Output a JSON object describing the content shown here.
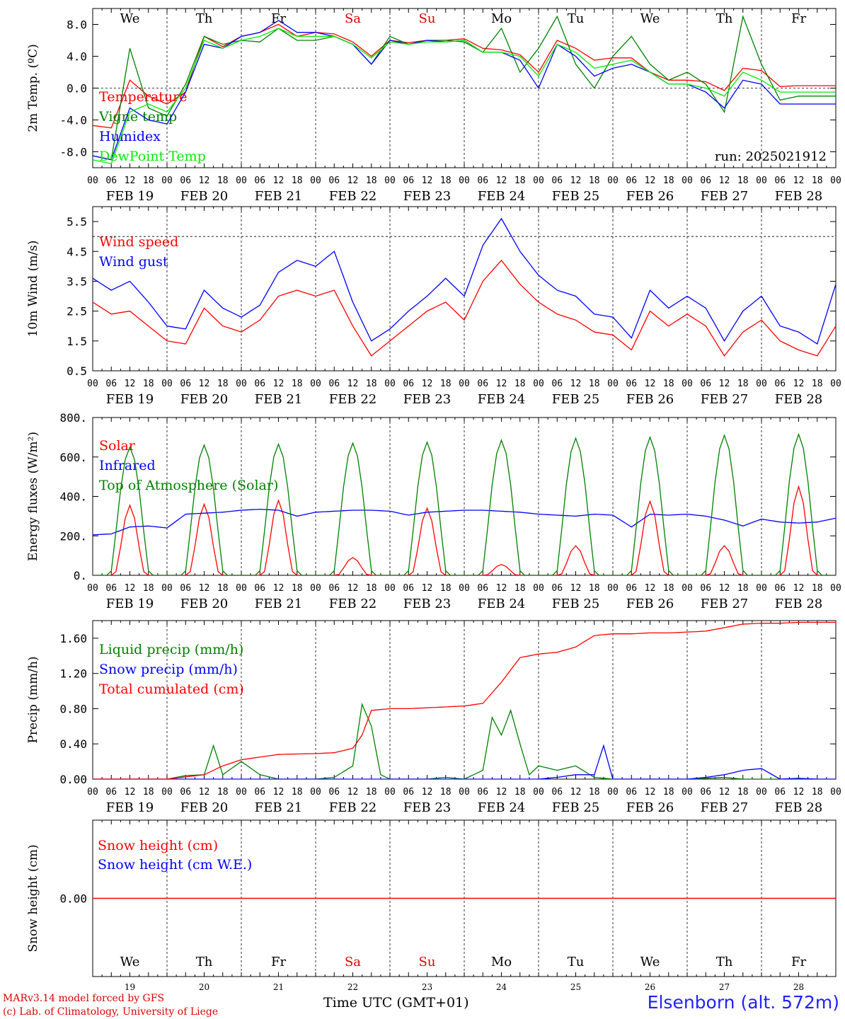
{
  "credits": {
    "model_line": "MARv3.14 model forced by GFS",
    "lab_line": "(c) Lab. of Climatology, University of Liege"
  },
  "xaxis_title": "Time UTC (GMT+01)",
  "station": "Elsenborn (alt. 572m)",
  "run_label": "run: 2025021912",
  "date_labels": [
    "FEB 19",
    "FEB 20",
    "FEB 21",
    "FEB 22",
    "FEB 23",
    "FEB 24",
    "FEB 25",
    "FEB 26",
    "FEB 27",
    "FEB 28"
  ],
  "hour_ticks": [
    "00",
    "06",
    "12",
    "18"
  ],
  "weekdays": [
    {
      "label": "We",
      "color": "#000000"
    },
    {
      "label": "Th",
      "color": "#000000"
    },
    {
      "label": "Fr",
      "color": "#000000"
    },
    {
      "label": "Sa",
      "color": "#e00000"
    },
    {
      "label": "Su",
      "color": "#e00000"
    },
    {
      "label": "Mo",
      "color": "#000000"
    },
    {
      "label": "Tu",
      "color": "#000000"
    },
    {
      "label": "We",
      "color": "#000000"
    },
    {
      "label": "Th",
      "color": "#000000"
    },
    {
      "label": "Fr",
      "color": "#000000"
    }
  ],
  "day_numbers": [
    "19",
    "20",
    "21",
    "22",
    "23",
    "24",
    "25",
    "26",
    "27",
    "28"
  ],
  "colors": {
    "red": "#ff0000",
    "green": "#008000",
    "blue": "#0000ff",
    "lime": "#00ee00"
  },
  "chart_data": [
    {
      "type": "line",
      "id": "temp",
      "ylabel": "2m Temp. (ºC)",
      "ylim": [
        -10.0,
        10.0
      ],
      "yticks": [
        -8.0,
        -4.0,
        0.0,
        4.0,
        8.0
      ],
      "ytick_labels": [
        "-8.0",
        "-4.0",
        "0.0",
        "4.0",
        "8.0"
      ],
      "ref_lines": [
        0.0
      ],
      "x_hours": [
        0,
        6,
        12,
        18,
        24,
        30,
        36,
        42,
        48,
        54,
        60,
        66,
        72,
        78,
        84,
        90,
        96,
        102,
        108,
        114,
        120,
        126,
        132,
        138,
        144,
        150,
        156,
        162,
        168,
        174,
        180,
        186,
        192,
        198,
        204,
        210,
        216,
        222,
        228,
        234,
        240
      ],
      "series": [
        {
          "name": "Temperature",
          "color": "red",
          "values": [
            -4.7,
            -5.0,
            1.0,
            -1.0,
            -2.0,
            -0.5,
            6.5,
            5.2,
            6.5,
            7.0,
            8.0,
            6.5,
            7.0,
            6.8,
            5.8,
            4.0,
            6.0,
            5.7,
            6.0,
            6.0,
            6.2,
            5.0,
            4.8,
            4.2,
            2.0,
            6.0,
            5.0,
            3.5,
            3.8,
            3.8,
            2.0,
            1.0,
            1.0,
            0.8,
            -0.3,
            2.5,
            2.2,
            0.2,
            0.3,
            0.3,
            0.3
          ]
        },
        {
          "name": "Vigne temp",
          "color": "green",
          "values": [
            -8.5,
            -9.0,
            5.0,
            -2.5,
            -3.5,
            0.5,
            6.5,
            5.5,
            6.0,
            5.8,
            7.5,
            6.0,
            6.0,
            6.5,
            5.5,
            3.0,
            6.5,
            5.5,
            6.0,
            6.0,
            5.8,
            4.5,
            7.5,
            2.0,
            5.0,
            9.0,
            3.0,
            0.0,
            4.0,
            6.5,
            3.0,
            1.0,
            2.0,
            0.5,
            -3.0,
            9.0,
            3.0,
            -1.5,
            -1.0,
            -1.0,
            -1.0
          ]
        },
        {
          "name": "Humidex",
          "color": "blue",
          "values": [
            -8.5,
            -9.0,
            -2.5,
            -4.0,
            -4.5,
            -0.5,
            5.5,
            5.0,
            6.5,
            7.0,
            8.5,
            7.0,
            7.0,
            6.5,
            5.5,
            3.0,
            6.0,
            5.5,
            6.0,
            5.8,
            6.0,
            4.5,
            4.5,
            3.5,
            0.0,
            5.5,
            4.0,
            1.5,
            2.5,
            3.0,
            2.0,
            0.5,
            0.5,
            -0.5,
            -2.5,
            1.0,
            0.5,
            -2.0,
            -2.0,
            -2.0,
            -2.0
          ]
        },
        {
          "name": "DewPoint Temp",
          "color": "lime",
          "values": [
            -9.0,
            -9.5,
            -3.0,
            -2.0,
            -3.0,
            0.0,
            6.0,
            5.0,
            6.0,
            6.5,
            7.5,
            6.5,
            6.5,
            6.5,
            5.5,
            3.8,
            5.8,
            5.5,
            5.8,
            5.8,
            6.0,
            4.5,
            4.5,
            4.0,
            1.5,
            5.5,
            4.5,
            2.5,
            3.0,
            3.5,
            2.0,
            0.5,
            0.5,
            0.0,
            -1.0,
            2.0,
            1.0,
            -0.5,
            -0.5,
            -0.5,
            -0.5
          ]
        }
      ]
    },
    {
      "type": "line",
      "id": "wind",
      "ylabel": "10m Wind (m/s)",
      "ylim": [
        0.5,
        6.0
      ],
      "yticks": [
        0.5,
        1.5,
        2.5,
        3.5,
        4.5,
        5.5
      ],
      "ytick_labels": [
        "0.5",
        "1.5",
        "2.5",
        "3.5",
        "4.5",
        "5.5"
      ],
      "ref_lines": [
        5.0
      ],
      "x_hours": [
        0,
        6,
        12,
        18,
        24,
        30,
        36,
        42,
        48,
        54,
        60,
        66,
        72,
        78,
        84,
        90,
        96,
        102,
        108,
        114,
        120,
        126,
        132,
        138,
        144,
        150,
        156,
        162,
        168,
        174,
        180,
        186,
        192,
        198,
        204,
        210,
        216,
        222,
        228,
        234,
        240
      ],
      "series": [
        {
          "name": "Wind speed",
          "color": "red",
          "values": [
            2.8,
            2.4,
            2.5,
            2.0,
            1.5,
            1.4,
            2.6,
            2.0,
            1.8,
            2.2,
            3.0,
            3.2,
            3.0,
            3.2,
            2.0,
            1.0,
            1.5,
            2.0,
            2.5,
            2.8,
            2.2,
            3.5,
            4.2,
            3.4,
            2.8,
            2.4,
            2.2,
            1.8,
            1.7,
            1.2,
            2.5,
            2.0,
            2.4,
            2.0,
            1.0,
            1.8,
            2.2,
            1.5,
            1.2,
            1.0,
            2.0
          ]
        },
        {
          "name": "Wind gust",
          "color": "blue",
          "values": [
            3.6,
            3.2,
            3.5,
            2.8,
            2.0,
            1.9,
            3.2,
            2.6,
            2.3,
            2.7,
            3.8,
            4.2,
            4.0,
            4.5,
            2.8,
            1.5,
            1.9,
            2.5,
            3.0,
            3.6,
            3.0,
            4.7,
            5.6,
            4.5,
            3.7,
            3.2,
            3.0,
            2.4,
            2.3,
            1.6,
            3.2,
            2.6,
            3.0,
            2.6,
            1.5,
            2.5,
            3.0,
            2.0,
            1.8,
            1.4,
            3.4
          ]
        }
      ]
    },
    {
      "type": "line",
      "id": "flux",
      "ylabel": "Energy fluxes (W/m²)",
      "ylim": [
        0,
        800
      ],
      "yticks": [
        0,
        200,
        400,
        600,
        800
      ],
      "ytick_labels": [
        "0.",
        "200.",
        "400.",
        "600.",
        "800."
      ],
      "ref_lines": [],
      "series": [
        {
          "name": "Solar",
          "color": "red",
          "day_peaks": [
            355,
            360,
            380,
            90,
            340,
            55,
            150,
            375,
            150,
            450
          ]
        },
        {
          "name": "Infrared",
          "color": "blue",
          "x_hours": [
            0,
            6,
            12,
            18,
            24,
            30,
            36,
            42,
            48,
            54,
            60,
            66,
            72,
            78,
            84,
            90,
            96,
            102,
            108,
            114,
            120,
            126,
            132,
            138,
            144,
            150,
            156,
            162,
            168,
            174,
            180,
            186,
            192,
            198,
            204,
            210,
            216,
            222,
            228,
            234,
            240
          ],
          "values": [
            205,
            210,
            245,
            250,
            240,
            310,
            315,
            320,
            330,
            335,
            330,
            300,
            320,
            325,
            330,
            330,
            325,
            305,
            320,
            325,
            330,
            330,
            325,
            320,
            310,
            305,
            300,
            310,
            305,
            245,
            310,
            305,
            310,
            300,
            280,
            250,
            285,
            270,
            265,
            270,
            290
          ]
        },
        {
          "name": "Top of Atmosphere (Solar)",
          "color": "green",
          "day_peaks": [
            650,
            660,
            665,
            670,
            675,
            685,
            695,
            700,
            710,
            715
          ]
        }
      ]
    },
    {
      "type": "line",
      "id": "precip",
      "ylabel": "Precip (mm/h)",
      "ylim": [
        0.0,
        1.8
      ],
      "yticks": [
        0.0,
        0.4,
        0.8,
        1.2,
        1.6
      ],
      "ytick_labels": [
        "0.00",
        "0.40",
        "0.80",
        "1.20",
        "1.60"
      ],
      "ref_lines": [],
      "series": [
        {
          "name": "Liquid precip (mm/h)",
          "color": "green",
          "x_hours": [
            0,
            12,
            24,
            30,
            36,
            39,
            42,
            48,
            54,
            60,
            66,
            72,
            78,
            84,
            87,
            90,
            93,
            96,
            102,
            108,
            114,
            120,
            126,
            129,
            132,
            135,
            138,
            141,
            144,
            150,
            156,
            162,
            168,
            174,
            180,
            186,
            192,
            198,
            204,
            210,
            216,
            222,
            228,
            234,
            240
          ],
          "values": [
            0,
            0,
            0,
            0.04,
            0.05,
            0.38,
            0.05,
            0.2,
            0.05,
            0,
            0,
            0,
            0.02,
            0.15,
            0.85,
            0.6,
            0.05,
            0,
            0,
            0,
            0.02,
            0,
            0.1,
            0.7,
            0.5,
            0.78,
            0.4,
            0.05,
            0.15,
            0.1,
            0.15,
            0.02,
            0,
            0,
            0,
            0,
            0,
            0.01,
            0.02,
            0,
            0,
            0,
            0,
            0,
            0
          ]
        },
        {
          "name": "Snow precip (mm/h)",
          "color": "blue",
          "x_hours": [
            0,
            12,
            24,
            36,
            48,
            60,
            72,
            84,
            96,
            108,
            120,
            132,
            144,
            150,
            156,
            162,
            165,
            168,
            180,
            192,
            198,
            204,
            210,
            216,
            222,
            228,
            234,
            240
          ],
          "values": [
            0,
            0,
            0,
            0,
            0,
            0,
            0,
            0,
            0,
            0,
            0,
            0,
            0,
            0.02,
            0.05,
            0.05,
            0.38,
            0,
            0,
            0,
            0.02,
            0.05,
            0.1,
            0.12,
            0,
            0.01,
            0,
            0
          ]
        },
        {
          "name": "Total cumulated (cm)",
          "color": "red",
          "x_hours": [
            0,
            24,
            36,
            42,
            48,
            60,
            72,
            78,
            84,
            87,
            90,
            96,
            102,
            108,
            114,
            120,
            126,
            132,
            138,
            144,
            150,
            156,
            162,
            168,
            174,
            180,
            186,
            192,
            198,
            204,
            210,
            216,
            222,
            228,
            234,
            240
          ],
          "values": [
            0,
            0,
            0.05,
            0.15,
            0.22,
            0.28,
            0.29,
            0.3,
            0.35,
            0.5,
            0.78,
            0.8,
            0.8,
            0.81,
            0.82,
            0.83,
            0.86,
            1.1,
            1.38,
            1.42,
            1.44,
            1.5,
            1.63,
            1.65,
            1.65,
            1.66,
            1.66,
            1.67,
            1.68,
            1.72,
            1.76,
            1.77,
            1.77,
            1.78,
            1.78,
            1.78
          ]
        }
      ]
    },
    {
      "type": "line",
      "id": "snow",
      "ylabel": "Snow height (cm)",
      "ylim": [
        -1.0,
        1.0
      ],
      "yticks": [
        0.0
      ],
      "ytick_labels": [
        "0.00"
      ],
      "ref_lines": [],
      "x_hours": [
        0,
        240
      ],
      "series": [
        {
          "name": "Snow height (cm)",
          "color": "red",
          "values": [
            0.0,
            0.0
          ]
        },
        {
          "name": "Snow height (cm W.E.)",
          "color": "blue",
          "values": []
        }
      ]
    }
  ]
}
